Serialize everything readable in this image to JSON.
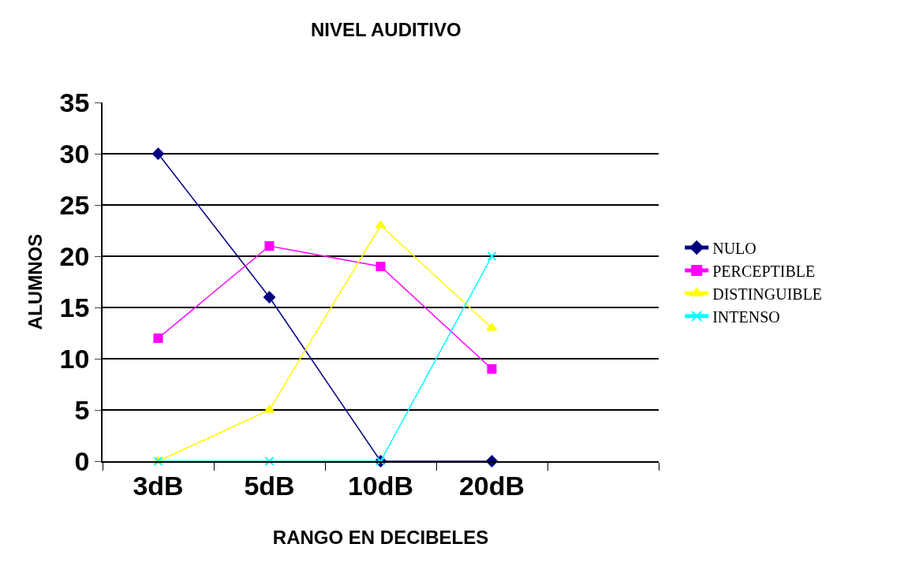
{
  "chart_data": {
    "type": "line",
    "title": "NIVEL AUDITIVO",
    "xlabel": "RANGO EN DECIBELES",
    "ylabel": "ALUMNOS",
    "categories": [
      "3dB",
      "5dB",
      "10dB",
      "20dB",
      null
    ],
    "series": [
      {
        "name": "NULO",
        "color": "#000080",
        "marker": "diamond",
        "values": [
          30,
          16,
          0,
          0,
          null
        ]
      },
      {
        "name": "PERCEPTIBLE",
        "color": "#ff00ff",
        "marker": "square",
        "values": [
          12,
          21,
          19,
          9,
          null
        ]
      },
      {
        "name": "DISTINGUIBLE",
        "color": "#ffff00",
        "marker": "triangle",
        "values": [
          0,
          5,
          23,
          13,
          null
        ]
      },
      {
        "name": "INTENSO",
        "color": "#00ffff",
        "marker": "cross",
        "values": [
          0,
          0,
          0,
          20,
          null
        ]
      }
    ],
    "ylim": [
      0,
      35
    ],
    "yticks": [
      0,
      5,
      10,
      15,
      20,
      25,
      30,
      35
    ],
    "grid": "y",
    "legend": "right",
    "line_style": "solid"
  }
}
